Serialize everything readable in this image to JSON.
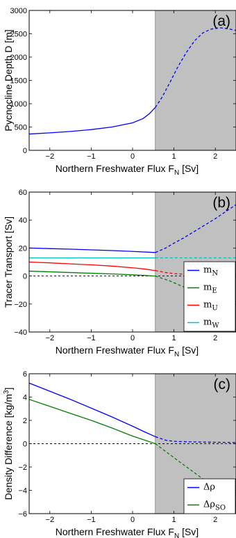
{
  "chart_data": [
    {
      "type": "line",
      "panel_label": "(a)",
      "xlabel": "Northern Freshwater Flux F",
      "xlabel_sub": "N",
      "xlabel_unit": "[Sv]",
      "ylabel": "Pycnocline Depth D [m]",
      "xlim": [
        -2.5,
        2.5
      ],
      "ylim": [
        0,
        3000
      ],
      "xticks": [
        -2,
        -1,
        0,
        1,
        2
      ],
      "xtick_labels": [
        "−2",
        "−1",
        "0",
        "1",
        "2"
      ],
      "yticks": [
        0,
        500,
        1000,
        1500,
        2000,
        2500,
        3000
      ],
      "ytick_labels": [
        "0",
        "500",
        "1000",
        "1500",
        "2000",
        "2500",
        "3000"
      ],
      "shaded_region": [
        0.55,
        2.5
      ],
      "shade_color": "#c0c0c0",
      "legend": false,
      "series": [
        {
          "color": "#0000ff",
          "solid": {
            "x": [
              -2.5,
              -2.0,
              -1.5,
              -1.0,
              -0.5,
              0.0,
              0.25,
              0.4,
              0.55
            ],
            "y": [
              350,
              375,
              405,
              445,
              500,
              590,
              680,
              780,
              920
            ]
          },
          "dashed": {
            "x": [
              0.55,
              0.7,
              0.9,
              1.1,
              1.3,
              1.5,
              1.7,
              1.9,
              2.1,
              2.3,
              2.5
            ],
            "y": [
              920,
              1120,
              1450,
              1800,
              2100,
              2350,
              2520,
              2600,
              2630,
              2610,
              2570
            ]
          }
        }
      ]
    },
    {
      "type": "line",
      "panel_label": "(b)",
      "xlabel": "Northern Freshwater Flux F",
      "xlabel_sub": "N",
      "xlabel_unit": "[Sv]",
      "ylabel": "Tracer Transport [Sv]",
      "xlim": [
        -2.5,
        2.5
      ],
      "ylim": [
        -40,
        60
      ],
      "xticks": [
        -2,
        -1,
        0,
        1,
        2
      ],
      "xtick_labels": [
        "−2",
        "−1",
        "0",
        "1",
        "2"
      ],
      "yticks": [
        -40,
        -20,
        0,
        20,
        40,
        60
      ],
      "ytick_labels": [
        "−40",
        "−20",
        "0",
        "20",
        "40",
        "60"
      ],
      "shaded_region": [
        0.55,
        2.5
      ],
      "shade_color": "#c0c0c0",
      "zero_line": true,
      "legend": true,
      "legend_position": "lower-right",
      "series": [
        {
          "name": "m",
          "sub": "N",
          "color": "#0000ff",
          "solid": {
            "x": [
              -2.5,
              -2.0,
              -1.5,
              -1.0,
              -0.5,
              0.0,
              0.55
            ],
            "y": [
              20,
              19.6,
              19.2,
              18.7,
              18.2,
              17.6,
              16.8
            ]
          },
          "dashed": {
            "x": [
              0.55,
              0.8,
              1.0,
              1.25,
              1.5,
              1.75,
              2.0,
              2.25,
              2.5
            ],
            "y": [
              16.8,
              20,
              23.5,
              27.5,
              32,
              36.5,
              41,
              46,
              51
            ]
          }
        },
        {
          "name": "m",
          "sub": "E",
          "color": "#008000",
          "solid": {
            "x": [
              -2.5,
              -2.0,
              -1.5,
              -1.0,
              -0.5,
              0.0,
              0.3,
              0.55
            ],
            "y": [
              3.5,
              3.0,
              2.5,
              2.0,
              1.5,
              0.9,
              0.4,
              0
            ]
          },
          "dashed": {
            "x": [
              0.55,
              0.9,
              1.25,
              1.6,
              2.0,
              2.5
            ],
            "y": [
              0,
              -3.5,
              -8,
              -12.5,
              -17.5,
              -24
            ]
          }
        },
        {
          "name": "m",
          "sub": "U",
          "color": "#ff0000",
          "solid": {
            "x": [
              -2.5,
              -2.0,
              -1.5,
              -1.0,
              -0.5,
              0.0,
              0.3,
              0.55
            ],
            "y": [
              10,
              9.4,
              8.7,
              8.0,
              7.1,
              5.9,
              5.0,
              3.9
            ]
          },
          "dashed": {
            "x": [
              0.55,
              0.8,
              1.0,
              1.3,
              1.6,
              2.0,
              2.5
            ],
            "y": [
              3.9,
              2.5,
              1.7,
              1.2,
              1.0,
              0.8,
              0.6
            ]
          }
        },
        {
          "name": "m",
          "sub": "W",
          "color": "#00bfbf",
          "solid": {
            "x": [
              -2.5,
              0.55
            ],
            "y": [
              13,
              13
            ]
          },
          "dashed": {
            "x": [
              0.55,
              2.5
            ],
            "y": [
              13,
              13
            ]
          }
        }
      ]
    },
    {
      "type": "line",
      "panel_label": "(c)",
      "xlabel": "Northern Freshwater Flux F",
      "xlabel_sub": "N",
      "xlabel_unit": "[Sv]",
      "ylabel": "Density Difference [kg/m",
      "ylabel_sup": "3",
      "ylabel_end": "]",
      "xlim": [
        -2.5,
        2.5
      ],
      "ylim": [
        -6,
        6
      ],
      "xticks": [
        -2,
        -1,
        0,
        1,
        2
      ],
      "xtick_labels": [
        "−2",
        "−1",
        "0",
        "1",
        "2"
      ],
      "yticks": [
        -6,
        -4,
        -2,
        0,
        2,
        4,
        6
      ],
      "ytick_labels": [
        "−6",
        "−4",
        "−2",
        "0",
        "2",
        "4",
        "6"
      ],
      "shaded_region": [
        0.55,
        2.5
      ],
      "shade_color": "#c0c0c0",
      "zero_line": true,
      "legend": true,
      "legend_position": "lower-right",
      "series": [
        {
          "name": "Δρ",
          "sub": "",
          "color": "#0000ff",
          "solid": {
            "x": [
              -2.5,
              -2.0,
              -1.5,
              -1.0,
              -0.5,
              0.0,
              0.3,
              0.55
            ],
            "y": [
              5.2,
              4.5,
              3.8,
              3.05,
              2.3,
              1.5,
              1.0,
              0.6
            ]
          },
          "dashed": {
            "x": [
              0.55,
              0.8,
              1.0,
              1.5,
              2.0,
              2.5
            ],
            "y": [
              0.6,
              0.3,
              0.2,
              0.15,
              0.12,
              0.1
            ]
          }
        },
        {
          "name": "Δρ",
          "sub": "SO",
          "color": "#008000",
          "solid": {
            "x": [
              -2.5,
              -2.0,
              -1.5,
              -1.0,
              -0.5,
              0.0,
              0.3,
              0.55
            ],
            "y": [
              3.8,
              3.2,
              2.6,
              2.0,
              1.35,
              0.65,
              0.3,
              0
            ]
          },
          "dashed": {
            "x": [
              0.55,
              1.0,
              1.5,
              2.0,
              2.5
            ],
            "y": [
              0,
              -1.2,
              -2.5,
              -3.8,
              -5.2
            ]
          }
        }
      ]
    }
  ]
}
